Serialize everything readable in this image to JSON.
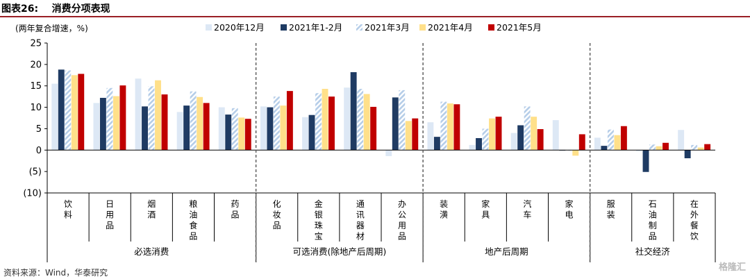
{
  "header": {
    "title": "图表26:    消费分项表现"
  },
  "footer": {
    "source": "资料来源：Wind，华泰研究"
  },
  "watermark": {
    "text": "格隆汇"
  },
  "colors": {
    "s2020_12": "#dde8f5",
    "s2021_1_2": "#1f3b63",
    "s2021_3": "#b5cde8",
    "s2021_4": "#ffe08a",
    "s2021_5": "#c00000",
    "separator": "#555555"
  },
  "chart_data": {
    "type": "bar",
    "unit_label": "(两年复合增速，%)",
    "ylim": [
      -10,
      25
    ],
    "yticks": [
      25,
      20,
      15,
      10,
      5,
      0,
      -5,
      -10
    ],
    "ytick_labels": [
      "25",
      "20",
      "15",
      "10",
      "5",
      "0",
      "(5)",
      "(10)"
    ],
    "categories": [
      "饮料",
      "日用品",
      "烟酒",
      "粮油食品",
      "药品",
      "化妆品",
      "金银珠宝",
      "通讯器材",
      "办公用品",
      "装潢",
      "家具",
      "汽车",
      "家电",
      "服装",
      "石油制品",
      "在外餐饮"
    ],
    "groups": [
      {
        "label": "必选消费",
        "start": 0,
        "end": 4
      },
      {
        "label": "可选消费(除地产后周期)",
        "start": 5,
        "end": 8
      },
      {
        "label": "地产后周期",
        "start": 9,
        "end": 12
      },
      {
        "label": "社交经济",
        "start": 13,
        "end": 15
      }
    ],
    "series": [
      {
        "name": "2020年12月",
        "pattern": "solid",
        "values": [
          15.5,
          11.0,
          16.7,
          8.9,
          10.0,
          10.2,
          7.7,
          14.6,
          -1.4,
          6.5,
          1.2,
          4.0,
          7.0,
          2.9,
          -0.3,
          4.7
        ]
      },
      {
        "name": "2021年1-2月",
        "pattern": "solid",
        "values": [
          18.8,
          12.2,
          10.2,
          10.4,
          8.3,
          10.0,
          8.2,
          18.2,
          12.3,
          3.1,
          2.8,
          5.8,
          -0.1,
          1.0,
          -5.1,
          -1.9
        ]
      },
      {
        "name": "2021年3月",
        "pattern": "hatch",
        "values": [
          18.6,
          14.5,
          14.9,
          13.7,
          9.8,
          12.5,
          13.3,
          14.3,
          14.0,
          11.3,
          5.0,
          10.2,
          0.0,
          4.8,
          1.3,
          1.2
        ]
      },
      {
        "name": "2021年4月",
        "pattern": "solid",
        "values": [
          17.5,
          12.6,
          16.3,
          12.4,
          7.6,
          10.4,
          14.3,
          13.1,
          6.8,
          10.9,
          7.4,
          7.8,
          -1.3,
          3.5,
          0.9,
          0.6
        ]
      },
      {
        "name": "2021年5月",
        "pattern": "solid",
        "values": [
          17.8,
          15.1,
          13.0,
          11.0,
          7.3,
          13.8,
          12.5,
          10.1,
          7.4,
          10.7,
          7.8,
          4.9,
          3.7,
          5.6,
          1.7,
          1.4
        ]
      }
    ],
    "legend_position": "top",
    "grid": false
  }
}
